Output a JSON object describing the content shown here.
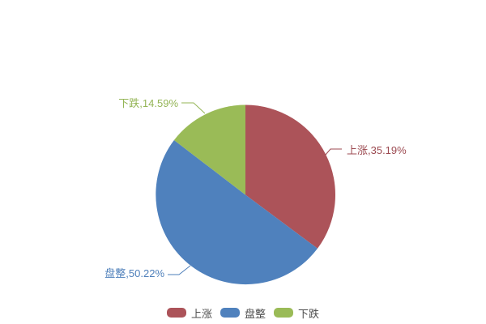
{
  "chart_data": {
    "type": "pie",
    "title": "",
    "unit": "%",
    "start_angle_deg": 0,
    "direction": "clockwise",
    "background": "#FFFFFF",
    "slices": [
      {
        "label": "上涨",
        "value": 35.19,
        "display": "上涨,35.19%",
        "color": "#AC5359",
        "label_color": "#9C4A51"
      },
      {
        "label": "盘整",
        "value": 50.22,
        "display": "盘整,50.22%",
        "color": "#4F81BD",
        "label_color": "#4E7FBA"
      },
      {
        "label": "下跌",
        "value": 14.59,
        "display": "下跌,14.59%",
        "color": "#9ABB57",
        "label_color": "#94B556"
      }
    ],
    "legend": {
      "position": "bottom",
      "entries": [
        "上涨",
        "盘整",
        "下跌"
      ],
      "text_color": "#4D4D4D"
    }
  }
}
